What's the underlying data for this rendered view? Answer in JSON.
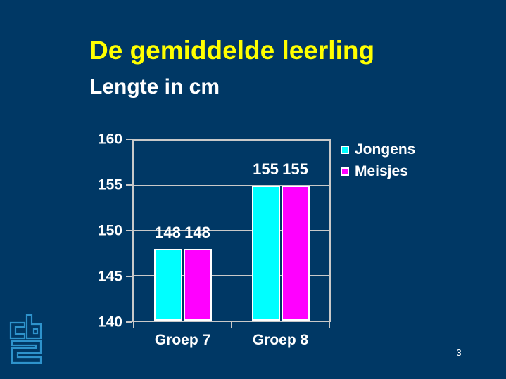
{
  "slide": {
    "title": "De gemiddelde leerling",
    "subtitle": "Lengte in cm",
    "page_number": "3",
    "background_color": "#003865",
    "title_color": "#ffff00",
    "text_color": "#ffffff"
  },
  "logo": {
    "name": "cbs-logo",
    "color": "#2e93cc"
  },
  "chart_data": {
    "type": "bar",
    "title": "De gemiddelde leerling",
    "subtitle": "Lengte in cm",
    "xlabel": "",
    "ylabel": "Lengte in cm",
    "categories": [
      "Groep 7",
      "Groep 8"
    ],
    "series": [
      {
        "name": "Jongens",
        "color": "#00ffff",
        "values": [
          148,
          155
        ]
      },
      {
        "name": "Meisjes",
        "color": "#ff00ff",
        "values": [
          148,
          155
        ]
      }
    ],
    "ylim": [
      140,
      160
    ],
    "yticks": [
      "140",
      "145",
      "150",
      "155",
      "160"
    ],
    "grid": true,
    "gridline_color": "#c9c9c9",
    "bar_border_color": "#ffffff",
    "data_labels": true,
    "legend_position": "right"
  }
}
